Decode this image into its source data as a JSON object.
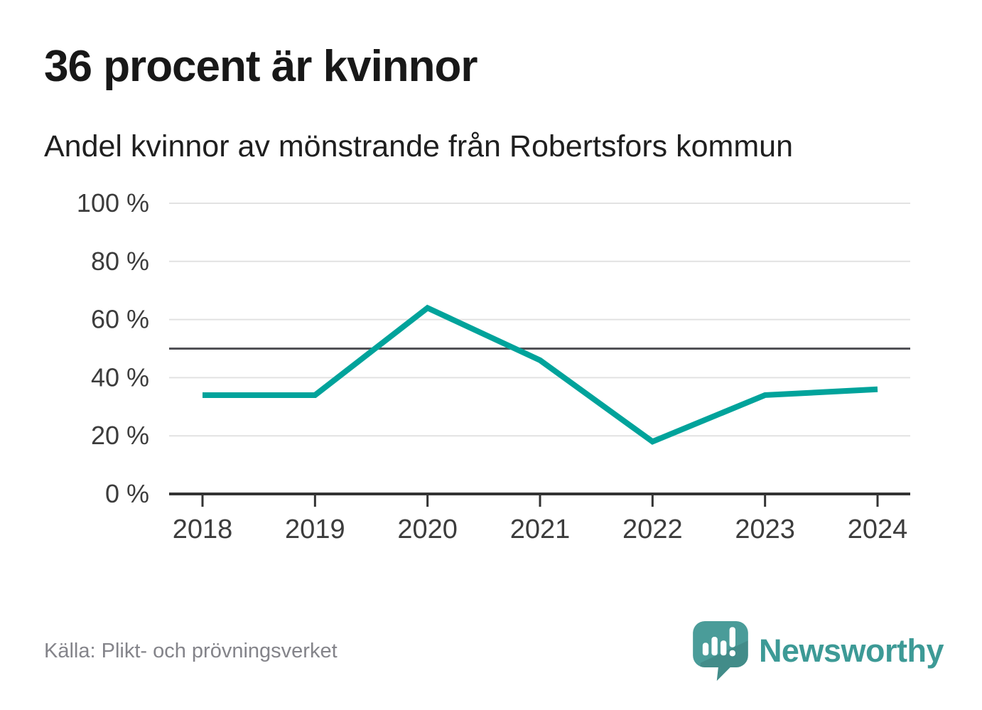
{
  "header": {
    "title": "36 procent är kvinnor",
    "subtitle": "Andel kvinnor av mönstrande från Robertsfors kommun"
  },
  "chart_data": {
    "type": "line",
    "categories": [
      "2018",
      "2019",
      "2020",
      "2021",
      "2022",
      "2023",
      "2024"
    ],
    "series": [
      {
        "name": "Andel kvinnor av mönstrande",
        "values": [
          34,
          34,
          64,
          46,
          18,
          34,
          36
        ]
      }
    ],
    "unit": "%",
    "ylim": [
      0,
      100
    ],
    "yticks": [
      {
        "value": 0,
        "label": "0 %"
      },
      {
        "value": 20,
        "label": "20 %"
      },
      {
        "value": 40,
        "label": "40 %"
      },
      {
        "value": 60,
        "label": "60 %"
      },
      {
        "value": 80,
        "label": "80 %"
      },
      {
        "value": 100,
        "label": "100 %"
      }
    ],
    "reference_line": {
      "value": 50
    },
    "grid": true,
    "legend": "none",
    "colors": {
      "line": "#00a39b",
      "reference_line": "#515156",
      "grid": "#e2e2e2",
      "axis": "#333333",
      "tick_label": "#3c3c3c"
    }
  },
  "footer": {
    "source": "Källa: Plikt- och prövningsverket",
    "brand": {
      "name": "Newsworthy",
      "color": "#3d9a96",
      "logo_icon": "newsworthy-speech-bubble-bar-chart-icon"
    }
  }
}
